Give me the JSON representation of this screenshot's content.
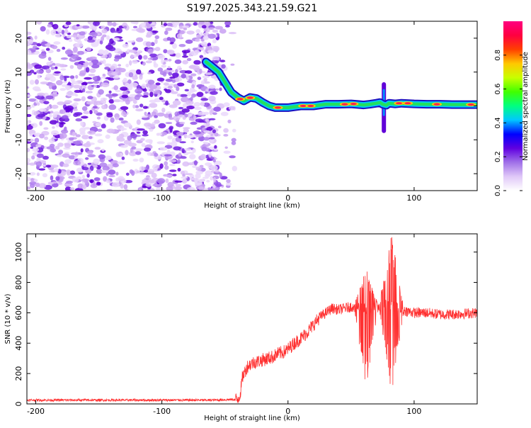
{
  "title": "S197.2025.343.21.59.G21",
  "chart_data": [
    {
      "type": "heatmap",
      "title": "S197.2025.343.21.59.G21",
      "xlabel": "Height of straight line (km)",
      "ylabel": "Frequency (Hz)",
      "xlim": [
        -207,
        150
      ],
      "ylim": [
        -25,
        25
      ],
      "xticks": [
        -200,
        -100,
        0,
        100
      ],
      "yticks": [
        -20,
        -10,
        0,
        10,
        20
      ],
      "colorbar": {
        "label": "Normalized spectral amplitude",
        "range": [
          0,
          1
        ],
        "ticks": [
          0.0,
          0.2,
          0.4,
          0.6,
          0.8
        ],
        "tick_labels": [
          "0.0",
          "0.2",
          "0.4",
          "0.6",
          "0.8"
        ],
        "colormap": [
          "#ffffff",
          "#e0c8f8",
          "#a070e8",
          "#6000e0",
          "#0000ff",
          "#00c8ff",
          "#00ff80",
          "#40ff00",
          "#c8ff00",
          "#ffc800",
          "#ff4000",
          "#ff0040",
          "#ff0080"
        ]
      },
      "noise_region_x": [
        -207,
        -50
      ],
      "track": {
        "x": [
          -65,
          -55,
          -50,
          -45,
          -40,
          -35,
          -30,
          -25,
          -20,
          -15,
          -10,
          0,
          10,
          20,
          30,
          40,
          50,
          60,
          65,
          70,
          73,
          75,
          78,
          80,
          85,
          90,
          100,
          110,
          120,
          130,
          140,
          150
        ],
        "frequency": [
          13,
          10,
          7,
          4,
          2.5,
          1.5,
          2.5,
          2.2,
          1,
          0,
          -0.5,
          -0.5,
          0,
          0,
          0.5,
          0.5,
          0.6,
          0.3,
          0.5,
          0.8,
          1,
          0.5,
          0.2,
          0.8,
          0.6,
          0.8,
          0.6,
          0.5,
          0.5,
          0.4,
          0.4,
          0.4
        ]
      },
      "feature": {
        "x": 76,
        "frequency_range": [
          -8,
          7
        ]
      }
    },
    {
      "type": "line",
      "title": "",
      "xlabel": "Height of straight line (km)",
      "ylabel": "SNR (10 * v/v)",
      "xlim": [
        -207,
        150
      ],
      "ylim": [
        0,
        1120
      ],
      "xticks": [
        -200,
        -100,
        0,
        100
      ],
      "yticks": [
        0,
        200,
        400,
        600,
        800,
        1000
      ],
      "color": "#ff3030",
      "series": [
        {
          "name": "SNR",
          "x": [
            -207,
            -150,
            -100,
            -60,
            -40,
            -38,
            -36,
            -32,
            -28,
            -24,
            -20,
            -16,
            -12,
            -8,
            -4,
            0,
            5,
            10,
            15,
            20,
            25,
            30,
            35,
            40,
            45,
            50,
            55,
            60,
            65,
            70,
            75,
            80,
            85,
            90,
            95,
            100,
            110,
            120,
            130,
            140,
            150
          ],
          "values": [
            25,
            25,
            25,
            25,
            30,
            60,
            180,
            250,
            270,
            280,
            290,
            300,
            310,
            330,
            340,
            360,
            400,
            430,
            470,
            520,
            570,
            600,
            630,
            620,
            630,
            640,
            640,
            630,
            620,
            640,
            650,
            650,
            640,
            620,
            610,
            600,
            600,
            590,
            590,
            595,
            600
          ]
        }
      ],
      "spikes": [
        {
          "x": 62,
          "max": 900,
          "min": 100
        },
        {
          "x": 82,
          "max": 1120,
          "min": 50
        }
      ]
    }
  ]
}
